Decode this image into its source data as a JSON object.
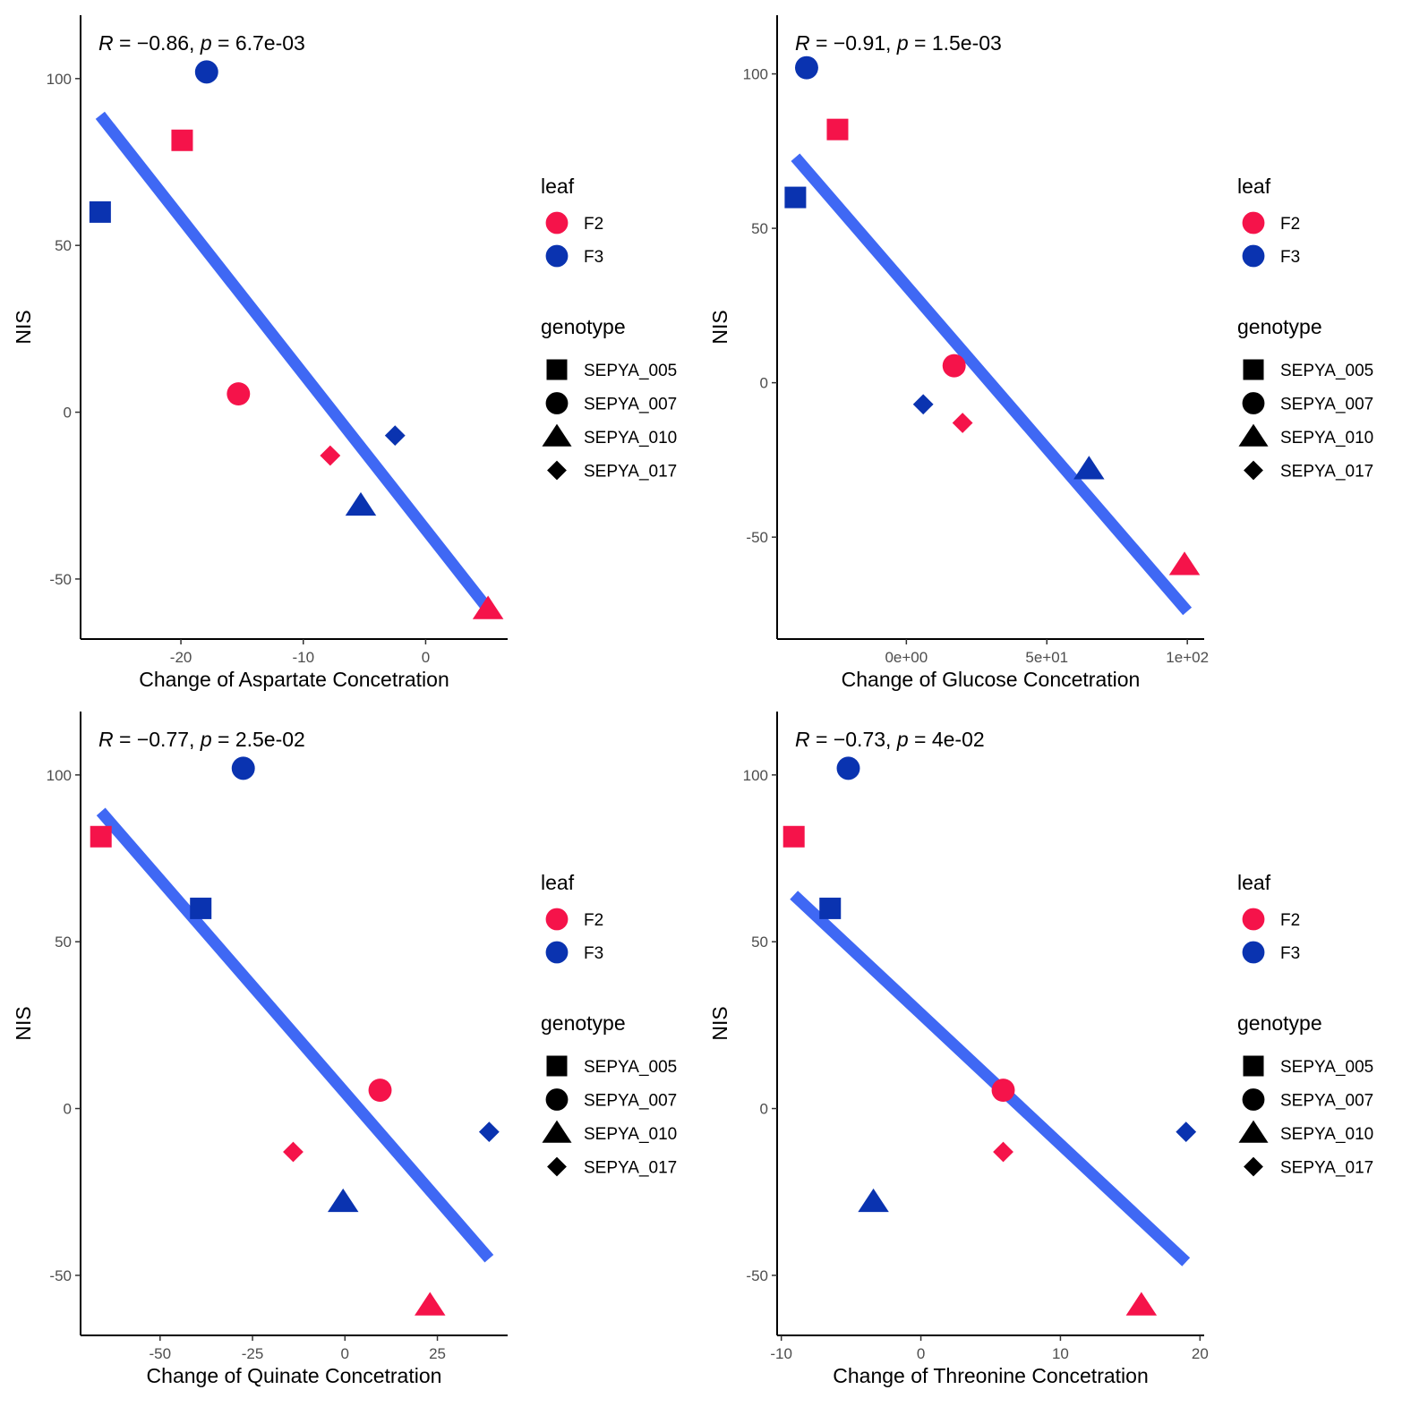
{
  "colors": {
    "F2": "#f5134a",
    "F3": "#0a33b0",
    "fit_line": "#3f68f4",
    "axis": "#000000",
    "shape_key": "#000000"
  },
  "legend": {
    "leaf_title": "leaf",
    "leaf_items": [
      {
        "label": "F2",
        "icon": "circle"
      },
      {
        "label": "F3",
        "icon": "circle"
      }
    ],
    "genotype_title": "genotype",
    "genotype_items": [
      {
        "label": "SEPYA_005",
        "icon": "square"
      },
      {
        "label": "SEPYA_007",
        "icon": "circle"
      },
      {
        "label": "SEPYA_010",
        "icon": "triangle"
      },
      {
        "label": "SEPYA_017",
        "icon": "diamond"
      }
    ]
  },
  "chart_data": [
    {
      "type": "scatter",
      "title": "",
      "xlabel": "Change of Aspartate Concetration",
      "ylabel": "NIS",
      "annotation": {
        "r_symbol": "R",
        "r_text": " = −0.86, ",
        "p_symbol": "p",
        "p_text": " = 6.7e-03"
      },
      "xlim": [
        -28.2,
        6.7
      ],
      "ylim": [
        -68,
        119
      ],
      "xticks": [
        -20,
        -10,
        0
      ],
      "xtick_labels": [
        "-20",
        "-10",
        "0"
      ],
      "yticks": [
        -50,
        0,
        50,
        100
      ],
      "ytick_labels": [
        "-50",
        "0",
        "50",
        "100"
      ],
      "fit_line": {
        "x": [
          -26.6,
          5.1
        ],
        "y": [
          89,
          -59
        ]
      },
      "points": [
        {
          "x": -17.9,
          "y": 102,
          "leaf": "F3",
          "genotype": "SEPYA_007"
        },
        {
          "x": -19.9,
          "y": 81.5,
          "leaf": "F2",
          "genotype": "SEPYA_005"
        },
        {
          "x": -26.6,
          "y": 60,
          "leaf": "F3",
          "genotype": "SEPYA_005"
        },
        {
          "x": -15.3,
          "y": 5.5,
          "leaf": "F2",
          "genotype": "SEPYA_007"
        },
        {
          "x": -2.5,
          "y": -7,
          "leaf": "F3",
          "genotype": "SEPYA_017"
        },
        {
          "x": -7.8,
          "y": -13,
          "leaf": "F2",
          "genotype": "SEPYA_017"
        },
        {
          "x": -5.3,
          "y": -28,
          "leaf": "F3",
          "genotype": "SEPYA_010"
        },
        {
          "x": 5.1,
          "y": -59,
          "leaf": "F2",
          "genotype": "SEPYA_010"
        }
      ]
    },
    {
      "type": "scatter",
      "title": "",
      "xlabel": "Change of Glucose Concetration",
      "ylabel": "NIS",
      "annotation": {
        "r_symbol": "R",
        "r_text": " = −0.91, ",
        "p_symbol": "p",
        "p_text": " = 1.5e-03"
      },
      "xlim": [
        -46,
        106
      ],
      "ylim": [
        -83,
        119
      ],
      "xticks": [
        0,
        50,
        100
      ],
      "xtick_labels": [
        "0e+00",
        "5e+01",
        "1e+02"
      ],
      "yticks": [
        -50,
        0,
        50,
        100
      ],
      "ytick_labels": [
        "-50",
        "0",
        "50",
        "100"
      ],
      "fit_line": {
        "x": [
          -39.5,
          100
        ],
        "y": [
          73,
          -74
        ]
      },
      "points": [
        {
          "x": -35.5,
          "y": 102,
          "leaf": "F3",
          "genotype": "SEPYA_007"
        },
        {
          "x": -24.5,
          "y": 82,
          "leaf": "F2",
          "genotype": "SEPYA_005"
        },
        {
          "x": -39.5,
          "y": 60,
          "leaf": "F3",
          "genotype": "SEPYA_005"
        },
        {
          "x": 17,
          "y": 5.5,
          "leaf": "F2",
          "genotype": "SEPYA_007"
        },
        {
          "x": 6,
          "y": -7,
          "leaf": "F3",
          "genotype": "SEPYA_017"
        },
        {
          "x": 20,
          "y": -13,
          "leaf": "F2",
          "genotype": "SEPYA_017"
        },
        {
          "x": 65,
          "y": -28,
          "leaf": "F3",
          "genotype": "SEPYA_010"
        },
        {
          "x": 99,
          "y": -59,
          "leaf": "F2",
          "genotype": "SEPYA_010"
        }
      ]
    },
    {
      "type": "scatter",
      "title": "",
      "xlabel": "Change of Quinate Concetration",
      "ylabel": "NIS",
      "annotation": {
        "r_symbol": "R",
        "r_text": " = −0.77, ",
        "p_symbol": "p",
        "p_text": " = 2.5e-02"
      },
      "xlim": [
        -71.5,
        44
      ],
      "ylim": [
        -68,
        119
      ],
      "xticks": [
        -50,
        -25,
        0,
        25
      ],
      "xtick_labels": [
        "-50",
        "-25",
        "0",
        "25"
      ],
      "yticks": [
        -50,
        0,
        50,
        100
      ],
      "ytick_labels": [
        "-50",
        "0",
        "50",
        "100"
      ],
      "fit_line": {
        "x": [
          -66,
          39
        ],
        "y": [
          89,
          -45
        ]
      },
      "points": [
        {
          "x": -27.5,
          "y": 102,
          "leaf": "F3",
          "genotype": "SEPYA_007"
        },
        {
          "x": -66,
          "y": 81.5,
          "leaf": "F2",
          "genotype": "SEPYA_005"
        },
        {
          "x": -39,
          "y": 60,
          "leaf": "F3",
          "genotype": "SEPYA_005"
        },
        {
          "x": 9.5,
          "y": 5.5,
          "leaf": "F2",
          "genotype": "SEPYA_007"
        },
        {
          "x": 39,
          "y": -7,
          "leaf": "F3",
          "genotype": "SEPYA_017"
        },
        {
          "x": -14,
          "y": -13,
          "leaf": "F2",
          "genotype": "SEPYA_017"
        },
        {
          "x": -0.5,
          "y": -28,
          "leaf": "F3",
          "genotype": "SEPYA_010"
        },
        {
          "x": 23,
          "y": -59,
          "leaf": "F2",
          "genotype": "SEPYA_010"
        }
      ]
    },
    {
      "type": "scatter",
      "title": "",
      "xlabel": "Change of Threonine Concetration",
      "ylabel": "NIS",
      "annotation": {
        "r_symbol": "R",
        "r_text": " = −0.73, ",
        "p_symbol": "p",
        "p_text": " = 4e-02"
      },
      "xlim": [
        -10.3,
        20.3
      ],
      "ylim": [
        -68,
        119
      ],
      "xticks": [
        -10,
        0,
        10,
        20
      ],
      "xtick_labels": [
        "-10",
        "0",
        "10",
        "20"
      ],
      "yticks": [
        -50,
        0,
        50,
        100
      ],
      "ytick_labels": [
        "-50",
        "0",
        "50",
        "100"
      ],
      "fit_line": {
        "x": [
          -9.1,
          19
        ],
        "y": [
          64,
          -46
        ]
      },
      "points": [
        {
          "x": -5.2,
          "y": 102,
          "leaf": "F3",
          "genotype": "SEPYA_007"
        },
        {
          "x": -9.1,
          "y": 81.5,
          "leaf": "F2",
          "genotype": "SEPYA_005"
        },
        {
          "x": -6.5,
          "y": 60,
          "leaf": "F3",
          "genotype": "SEPYA_005"
        },
        {
          "x": 5.9,
          "y": 5.5,
          "leaf": "F2",
          "genotype": "SEPYA_007"
        },
        {
          "x": 19,
          "y": -7,
          "leaf": "F3",
          "genotype": "SEPYA_017"
        },
        {
          "x": 5.9,
          "y": -13,
          "leaf": "F2",
          "genotype": "SEPYA_017"
        },
        {
          "x": -3.4,
          "y": -28,
          "leaf": "F3",
          "genotype": "SEPYA_010"
        },
        {
          "x": 15.8,
          "y": -59,
          "leaf": "F2",
          "genotype": "SEPYA_010"
        }
      ]
    }
  ]
}
